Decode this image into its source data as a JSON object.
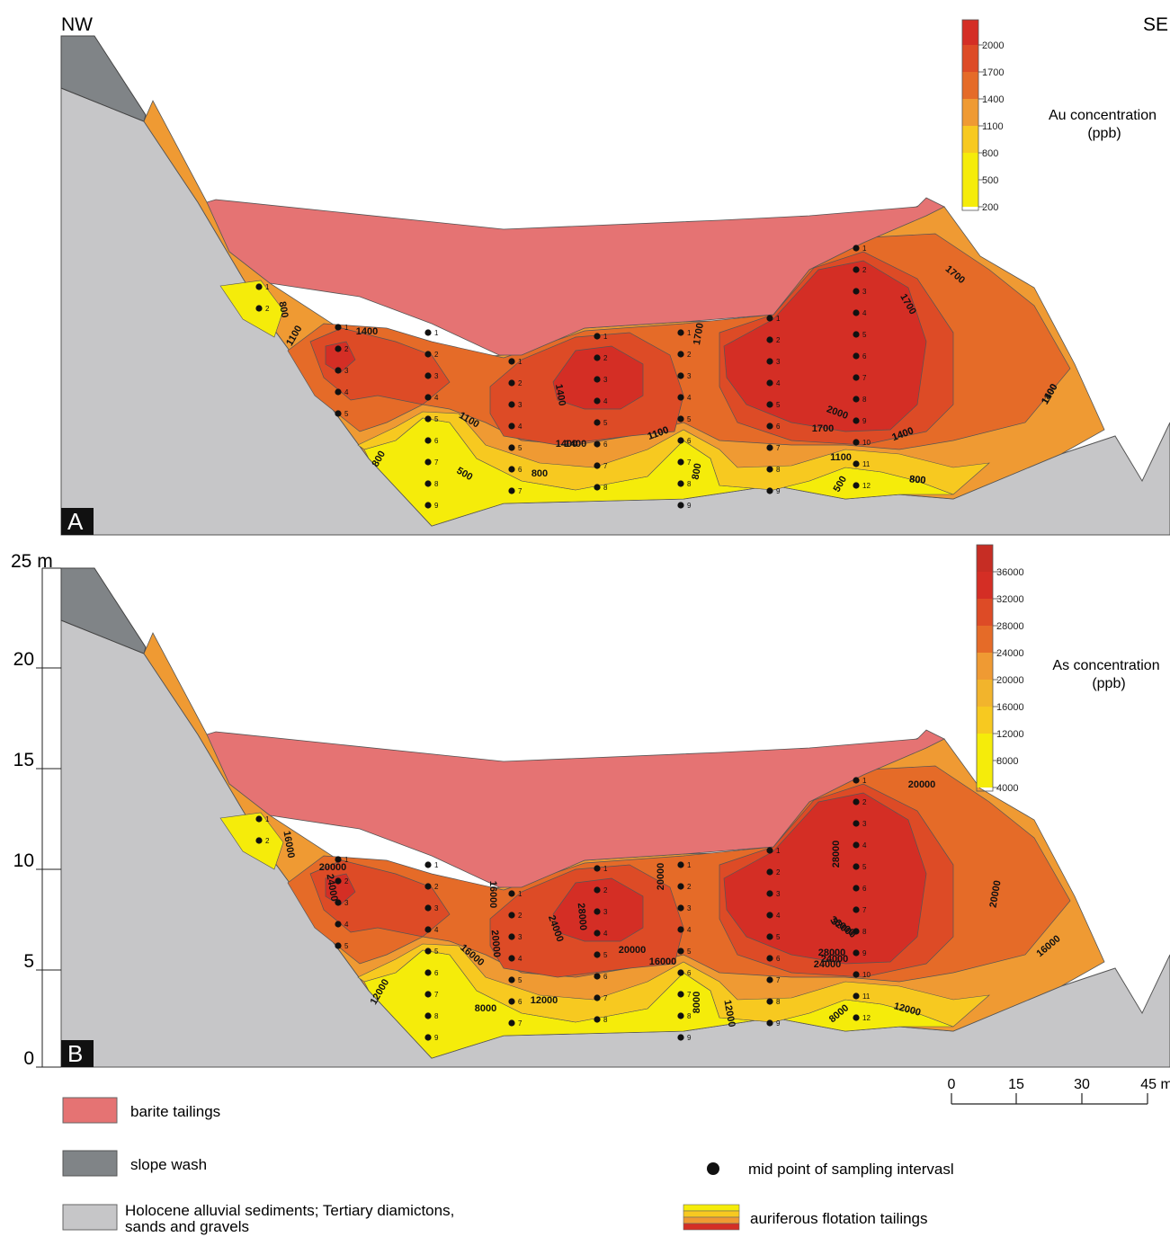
{
  "orientation": {
    "left": "NW",
    "right": "SE"
  },
  "panels": [
    {
      "tag": "A",
      "title": "Au concentration",
      "unit": "(ppb)",
      "colorbar": [
        "2000",
        "1700",
        "1400",
        "1100",
        "800",
        "500",
        "200"
      ],
      "contours": [
        "800",
        "1100",
        "1400",
        "1400",
        "1700",
        "2000",
        "1700",
        "1400",
        "1700",
        "1400",
        "1100",
        "1100",
        "1400",
        "1700",
        "1100",
        "800",
        "1100",
        "1400",
        "800",
        "500",
        "1400",
        "800",
        "800",
        "1100",
        "500",
        "800"
      ]
    },
    {
      "tag": "B",
      "title": "As concentration",
      "unit": "(ppb)",
      "colorbar": [
        "36000",
        "32000",
        "28000",
        "24000",
        "20000",
        "16000",
        "12000",
        "8000",
        "4000"
      ],
      "contours": [
        "12000",
        "16000",
        "20000",
        "24000",
        "16000",
        "20000",
        "24000",
        "28000",
        "20000",
        "16000",
        "20000",
        "16000",
        "24000",
        "28000",
        "32000",
        "36000",
        "28000",
        "24000",
        "20000",
        "20000",
        "16000",
        "12000",
        "8000",
        "12000",
        "8000",
        "12000",
        "8000"
      ]
    }
  ],
  "depth_axis": {
    "unit_label": "25 m",
    "ticks": [
      "20",
      "15",
      "10",
      "5",
      "0"
    ]
  },
  "scale_bar": {
    "ticks": [
      "0",
      "15",
      "30",
      "45 m"
    ]
  },
  "sample_columns": [
    {
      "labels": [
        "1",
        "2"
      ]
    },
    {
      "labels": [
        "1",
        "2",
        "3",
        "4",
        "5"
      ]
    },
    {
      "labels": [
        "1",
        "2",
        "3",
        "4",
        "5",
        "6",
        "7",
        "8",
        "9"
      ]
    },
    {
      "labels": [
        "1",
        "2",
        "3",
        "4",
        "5",
        "6",
        "7"
      ]
    },
    {
      "labels": [
        "1",
        "2",
        "3",
        "4",
        "5",
        "6",
        "7",
        "8"
      ]
    },
    {
      "labels": [
        "1",
        "2",
        "3",
        "4",
        "5",
        "6",
        "7",
        "8",
        "9"
      ]
    },
    {
      "labels": [
        "1",
        "2",
        "3",
        "4",
        "5",
        "6",
        "7",
        "8",
        "9"
      ]
    },
    {
      "labels": [
        "1",
        "2",
        "3",
        "4",
        "5",
        "6",
        "7",
        "8",
        "9",
        "10",
        "11",
        "12"
      ]
    }
  ],
  "legend": {
    "barite": "barite tailings",
    "slope_wash": "slope wash",
    "holocene_line1": "Holocene alluvial sediments; Tertiary diamictons,",
    "holocene_line2": "sands and gravels",
    "midpoint": "mid point of sampling intervasl",
    "flotation": "auriferous flotation tailings"
  },
  "colors": {
    "barite": "#e57373",
    "slope_wash": "#808487",
    "holocene": "#c6c6c8",
    "c_yellow": "#f5ec0a",
    "c_gold": "#f7c920",
    "c_orange_light": "#ef9a33",
    "c_orange": "#e56b28",
    "c_red_orange": "#dd4b26",
    "c_red": "#d42e25"
  }
}
